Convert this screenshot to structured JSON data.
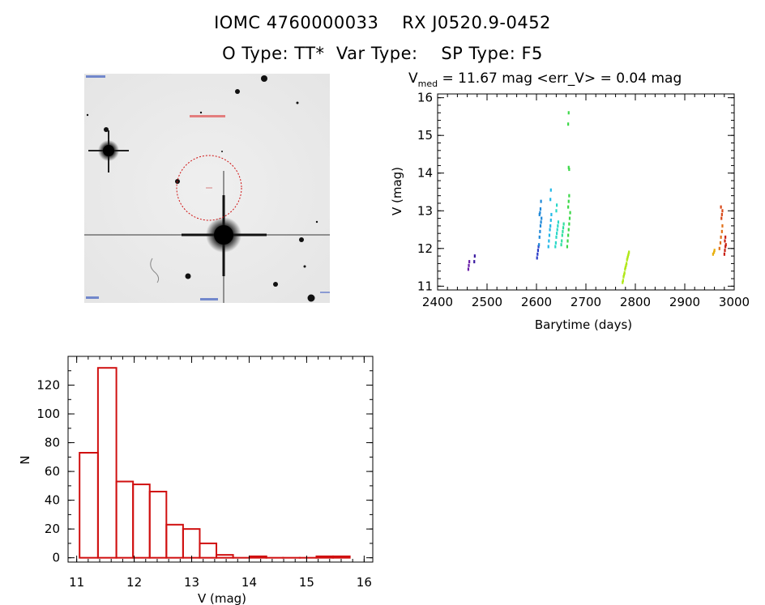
{
  "header": {
    "title_line1": "IOMC 4760000033    RX J0520.9-0452",
    "title_line2": "O Type: TT*  Var Type:    SP Type: F5"
  },
  "sky_image": {
    "description_name": "finding-chart",
    "circle_color": "#d01010"
  },
  "chart_data": [
    {
      "type": "scatter",
      "name": "light-curve",
      "title_prefix": "V",
      "title_subscript": "med",
      "title_rest": " = 11.67 mag <err_V> = 0.04 mag",
      "xlabel": "Barytime (days)",
      "ylabel": "V (mag)",
      "xlim": [
        2400,
        3000
      ],
      "ylim": [
        16.1,
        10.9
      ],
      "xticks": [
        2400,
        2500,
        2600,
        2700,
        2800,
        2900,
        3000
      ],
      "yticks": [
        11,
        12,
        13,
        14,
        15,
        16
      ],
      "groups": [
        {
          "color": "#6a1ea8",
          "x": [
            2462,
            2463,
            2464
          ],
          "y": [
            11.45,
            11.55,
            11.65
          ]
        },
        {
          "color": "#3a1aa0",
          "x": [
            2474,
            2475
          ],
          "y": [
            11.65,
            11.8
          ]
        },
        {
          "color": "#2a3cc8",
          "x": [
            2601,
            2602,
            2603,
            2604
          ],
          "y": [
            11.75,
            11.85,
            11.95,
            12.05
          ]
        },
        {
          "color": "#1e88d8",
          "x": [
            2605,
            2606,
            2607,
            2608,
            2609,
            2610,
            2606,
            2607,
            2608,
            2609
          ],
          "y": [
            12.1,
            12.3,
            12.45,
            12.6,
            12.7,
            12.8,
            12.9,
            12.95,
            13.05,
            13.25
          ]
        },
        {
          "color": "#22b8e8",
          "x": [
            2624,
            2625,
            2626,
            2627,
            2628,
            2629,
            2630,
            2628,
            2629
          ],
          "y": [
            12.05,
            12.2,
            12.35,
            12.5,
            12.6,
            12.75,
            12.9,
            13.3,
            13.55
          ]
        },
        {
          "color": "#2ad8c8",
          "x": [
            2638,
            2639,
            2640,
            2641,
            2642,
            2643,
            2644,
            2640,
            2641
          ],
          "y": [
            12.05,
            12.15,
            12.3,
            12.4,
            12.5,
            12.6,
            12.7,
            13.0,
            13.15
          ]
        },
        {
          "color": "#30e0a0",
          "x": [
            2650,
            2651,
            2652,
            2653,
            2654,
            2655
          ],
          "y": [
            12.1,
            12.2,
            12.35,
            12.45,
            12.55,
            12.65
          ]
        },
        {
          "color": "#3cd848",
          "x": [
            2662,
            2663,
            2664,
            2665,
            2666,
            2667,
            2668,
            2664,
            2665,
            2666,
            2665,
            2666,
            2664,
            2665
          ],
          "y": [
            12.05,
            12.2,
            12.35,
            12.5,
            12.65,
            12.8,
            12.95,
            13.1,
            13.25,
            13.4,
            14.15,
            14.1,
            15.3,
            15.6
          ]
        },
        {
          "color": "#b0e818",
          "x": [
            2774,
            2775,
            2776,
            2777,
            2778,
            2779,
            2780,
            2781,
            2782,
            2783,
            2784,
            2785,
            2786,
            2787
          ],
          "y": [
            11.1,
            11.15,
            11.25,
            11.3,
            11.35,
            11.45,
            11.5,
            11.55,
            11.6,
            11.7,
            11.75,
            11.8,
            11.85,
            11.9
          ]
        },
        {
          "color": "#e8b010",
          "x": [
            2957,
            2959,
            2960
          ],
          "y": [
            11.85,
            11.9,
            11.95
          ]
        },
        {
          "color": "#e07018",
          "x": [
            2970,
            2972,
            2973,
            2975,
            2976
          ],
          "y": [
            12.0,
            12.15,
            12.3,
            12.45,
            12.6
          ]
        },
        {
          "color": "#d84818",
          "x": [
            2974,
            2975,
            2976,
            2973
          ],
          "y": [
            12.8,
            12.9,
            13.0,
            13.1
          ]
        },
        {
          "color": "#c82010",
          "x": [
            2980,
            2981,
            2982,
            2983,
            2981,
            2982
          ],
          "y": [
            11.85,
            11.95,
            12.05,
            12.1,
            12.2,
            12.3
          ]
        }
      ]
    },
    {
      "type": "bar",
      "name": "magnitude-histogram",
      "xlabel": "V (mag)",
      "ylabel": "N",
      "xlim": [
        10.85,
        16.15
      ],
      "ylim": [
        -3,
        140
      ],
      "xticks": [
        11,
        12,
        13,
        14,
        15,
        16
      ],
      "yticks": [
        0,
        20,
        40,
        60,
        80,
        100,
        120
      ],
      "bin_edges": [
        11.05,
        11.37,
        11.69,
        11.98,
        12.27,
        12.56,
        12.85,
        13.14,
        13.43,
        13.72,
        14.01,
        14.3,
        14.59,
        14.88,
        15.17,
        15.46,
        15.75
      ],
      "counts": [
        73,
        132,
        53,
        51,
        46,
        23,
        20,
        10,
        2,
        0,
        1,
        0,
        0,
        0,
        1,
        1
      ],
      "bar_color": "#d01010"
    }
  ]
}
